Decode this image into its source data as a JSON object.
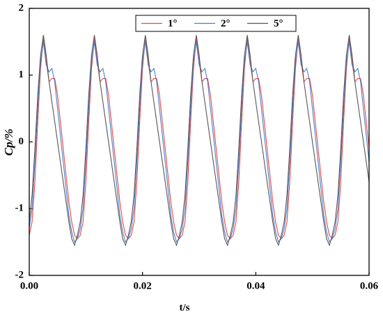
{
  "chart_data": {
    "type": "line",
    "x_label": "t/s",
    "y_label": "Cp/%",
    "x": [
      0,
      0.0005,
      0.001,
      0.0015,
      0.002,
      0.0025,
      0.003,
      0.0035,
      0.004,
      0.0045,
      0.005,
      0.0055,
      0.006,
      0.0065,
      0.007,
      0.0075,
      0.008,
      0.0085,
      0.009,
      0.0095,
      0.01,
      0.0105,
      0.011,
      0.0115,
      0.012,
      0.0125,
      0.013,
      0.0135,
      0.014,
      0.0145,
      0.015,
      0.0155,
      0.016,
      0.0165,
      0.017,
      0.0175,
      0.018,
      0.0185,
      0.019,
      0.0195,
      0.02,
      0.0205,
      0.021,
      0.0215,
      0.022,
      0.0225,
      0.023,
      0.0235,
      0.024,
      0.0245,
      0.025,
      0.0255,
      0.026,
      0.0265,
      0.027,
      0.0275,
      0.028,
      0.0285,
      0.029,
      0.0295,
      0.03,
      0.0305,
      0.031,
      0.0315,
      0.032,
      0.0325,
      0.033,
      0.0335,
      0.034,
      0.0345,
      0.035,
      0.0355,
      0.036,
      0.0365,
      0.037,
      0.0375,
      0.038,
      0.0385,
      0.039,
      0.0395,
      0.04,
      0.0405,
      0.041,
      0.0415,
      0.042,
      0.0425,
      0.043,
      0.0435,
      0.044,
      0.0445,
      0.045,
      0.0455,
      0.046,
      0.0465,
      0.047,
      0.0475,
      0.048,
      0.0485,
      0.049,
      0.0495,
      0.05,
      0.0505,
      0.051,
      0.0515,
      0.052,
      0.0525,
      0.053,
      0.0535,
      0.054,
      0.0545,
      0.055,
      0.0555,
      0.056,
      0.0565,
      0.057,
      0.0575,
      0.058,
      0.0585,
      0.059,
      0.0595,
      0.06
    ],
    "series": [
      {
        "name": "1°",
        "color": "#e8474a",
        "values": [
          -1.4,
          -1.2,
          -0.6,
          0.3,
          1.1,
          1.55,
          1.2,
          0.9,
          0.95,
          0.95,
          0.7,
          0.3,
          -0.1,
          -0.5,
          -0.9,
          -1.2,
          -1.4,
          -1.45,
          -1.4,
          -1.2,
          -0.6,
          0.3,
          1.1,
          1.55,
          1.2,
          0.9,
          0.95,
          0.95,
          0.7,
          0.3,
          -0.1,
          -0.5,
          -0.9,
          -1.2,
          -1.4,
          -1.45,
          -1.4,
          -1.2,
          -0.6,
          0.3,
          1.1,
          1.55,
          1.2,
          0.9,
          0.95,
          0.95,
          0.7,
          0.3,
          -0.1,
          -0.5,
          -0.9,
          -1.2,
          -1.4,
          -1.45,
          -1.4,
          -1.2,
          -0.6,
          0.3,
          1.1,
          1.55,
          1.2,
          0.9,
          0.95,
          0.95,
          0.7,
          0.3,
          -0.1,
          -0.5,
          -0.9,
          -1.2,
          -1.4,
          -1.45,
          -1.4,
          -1.2,
          -0.6,
          0.3,
          1.1,
          1.55,
          1.2,
          0.9,
          0.95,
          0.95,
          0.7,
          0.3,
          -0.1,
          -0.5,
          -0.9,
          -1.2,
          -1.4,
          -1.45,
          -1.4,
          -1.2,
          -0.6,
          0.3,
          1.1,
          1.55,
          1.2,
          0.9,
          0.95,
          0.95,
          0.7,
          0.3,
          -0.1,
          -0.5,
          -0.9,
          -1.2,
          -1.4,
          -1.45,
          -1.4,
          -1.2,
          -0.6,
          0.3,
          1.1,
          1.55,
          1.2,
          0.9,
          0.95,
          0.95,
          0.7,
          0.3,
          -0.1
        ]
      },
      {
        "name": "2°",
        "color": "#4a7fc9",
        "values": [
          -1.3,
          -1.0,
          -0.3,
          0.5,
          1.2,
          1.5,
          1.15,
          1.05,
          1.1,
          0.9,
          0.5,
          0.1,
          -0.3,
          -0.7,
          -1.1,
          -1.35,
          -1.5,
          -1.45,
          -1.3,
          -1.0,
          -0.3,
          0.5,
          1.2,
          1.5,
          1.15,
          1.05,
          1.1,
          0.9,
          0.5,
          0.1,
          -0.3,
          -0.7,
          -1.1,
          -1.35,
          -1.5,
          -1.45,
          -1.3,
          -1.0,
          -0.3,
          0.5,
          1.2,
          1.5,
          1.15,
          1.05,
          1.1,
          0.9,
          0.5,
          0.1,
          -0.3,
          -0.7,
          -1.1,
          -1.35,
          -1.5,
          -1.45,
          -1.3,
          -1.0,
          -0.3,
          0.5,
          1.2,
          1.5,
          1.15,
          1.05,
          1.1,
          0.9,
          0.5,
          0.1,
          -0.3,
          -0.7,
          -1.1,
          -1.35,
          -1.5,
          -1.45,
          -1.3,
          -1.0,
          -0.3,
          0.5,
          1.2,
          1.5,
          1.15,
          1.05,
          1.1,
          0.9,
          0.5,
          0.1,
          -0.3,
          -0.7,
          -1.1,
          -1.35,
          -1.5,
          -1.45,
          -1.3,
          -1.0,
          -0.3,
          0.5,
          1.2,
          1.5,
          1.15,
          1.05,
          1.1,
          0.9,
          0.5,
          0.1,
          -0.3,
          -0.7,
          -1.1,
          -1.35,
          -1.5,
          -1.45,
          -1.3,
          -1.0,
          -0.3,
          0.5,
          1.2,
          1.5,
          1.15,
          1.05,
          1.1,
          0.9,
          0.5,
          0.1,
          -0.3
        ]
      },
      {
        "name": "5°",
        "color": "#555555",
        "values": [
          -1.2,
          -0.8,
          -0.1,
          0.7,
          1.3,
          1.6,
          1.3,
          0.9,
          0.6,
          0.3,
          0.0,
          -0.3,
          -0.6,
          -0.9,
          -1.2,
          -1.45,
          -1.55,
          -1.4,
          -1.2,
          -0.8,
          -0.1,
          0.7,
          1.3,
          1.6,
          1.3,
          0.9,
          0.6,
          0.3,
          0.0,
          -0.3,
          -0.6,
          -0.9,
          -1.2,
          -1.45,
          -1.55,
          -1.4,
          -1.2,
          -0.8,
          -0.1,
          0.7,
          1.3,
          1.6,
          1.3,
          0.9,
          0.6,
          0.3,
          0.0,
          -0.3,
          -0.6,
          -0.9,
          -1.2,
          -1.45,
          -1.55,
          -1.4,
          -1.2,
          -0.8,
          -0.1,
          0.7,
          1.3,
          1.6,
          1.3,
          0.9,
          0.6,
          0.3,
          0.0,
          -0.3,
          -0.6,
          -0.9,
          -1.2,
          -1.45,
          -1.55,
          -1.4,
          -1.2,
          -0.8,
          -0.1,
          0.7,
          1.3,
          1.6,
          1.3,
          0.9,
          0.6,
          0.3,
          0.0,
          -0.3,
          -0.6,
          -0.9,
          -1.2,
          -1.45,
          -1.55,
          -1.4,
          -1.2,
          -0.8,
          -0.1,
          0.7,
          1.3,
          1.6,
          1.3,
          0.9,
          0.6,
          0.3,
          0.0,
          -0.3,
          -0.6,
          -0.9,
          -1.2,
          -1.45,
          -1.55,
          -1.4,
          -1.2,
          -0.8,
          -0.1,
          0.7,
          1.3,
          1.6,
          1.3,
          0.9,
          0.6,
          0.3,
          0.0,
          -0.3,
          -0.6
        ]
      }
    ],
    "xlim": [
      0,
      0.06
    ],
    "xticks": [
      {
        "value": 0,
        "label": "0.00"
      },
      {
        "value": 0.02,
        "label": "0.02"
      },
      {
        "value": 0.04,
        "label": "0.04"
      },
      {
        "value": 0.06,
        "label": "0.06"
      }
    ],
    "ylim": [
      -2,
      2
    ],
    "yticks": [
      -2,
      -1,
      0,
      1,
      2
    ],
    "legend": "top-right"
  }
}
